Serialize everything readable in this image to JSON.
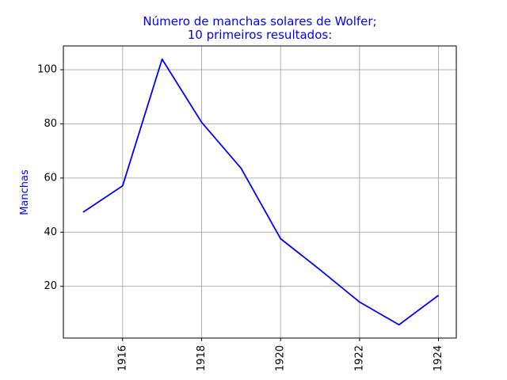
{
  "chart_data": {
    "type": "line",
    "title_line1": "Número de manchas solares de Wolfer;",
    "title_line2": "10 primeiros resultados:",
    "xlabel": "",
    "ylabel": "Manchas",
    "x": [
      1915,
      1916,
      1917,
      1918,
      1919,
      1920,
      1921,
      1922,
      1923,
      1924
    ],
    "y": [
      47.4,
      57.1,
      103.9,
      80.6,
      63.6,
      37.6,
      26.1,
      14.2,
      5.8,
      16.7
    ],
    "xticks": [
      1916,
      1918,
      1920,
      1922,
      1924
    ],
    "yticks": [
      20,
      40,
      60,
      80,
      100
    ],
    "xlim": [
      1914.5,
      1924.45
    ],
    "ylim": [
      0.9,
      108.8
    ],
    "grid": true,
    "line_color": "#0000ff",
    "title_color": "#0000ff"
  }
}
